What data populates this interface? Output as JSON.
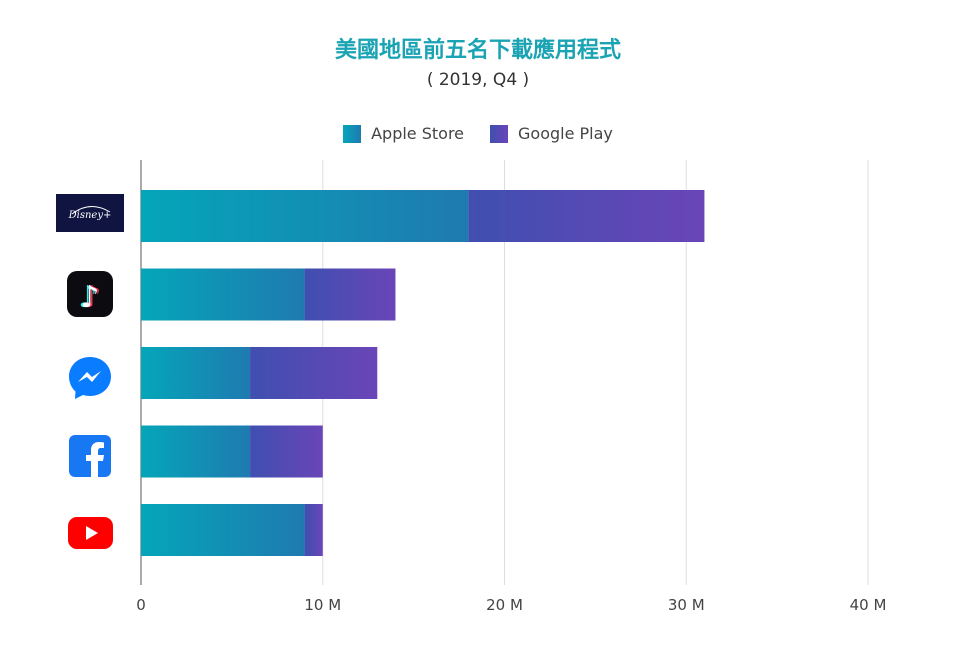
{
  "title": "美國地區前五名下載應用程式",
  "subtitle": "( 2019, Q4 )",
  "colors": {
    "apple_store_start": "#04a6b9",
    "apple_store_end": "#1f7ab0",
    "google_play_start": "#3f4fb0",
    "google_play_end": "#6a45b8",
    "grid": "#dddddd",
    "title": "#1aa3b3"
  },
  "chart_data": {
    "type": "bar",
    "orientation": "horizontal",
    "stacked": true,
    "categories": [
      "Disney+",
      "TikTok",
      "Messenger",
      "Facebook",
      "YouTube"
    ],
    "category_icons": [
      "disney-plus-icon",
      "tiktok-icon",
      "messenger-icon",
      "facebook-icon",
      "youtube-icon"
    ],
    "series": [
      {
        "name": "Apple Store",
        "values": [
          18,
          9,
          6,
          6,
          9
        ]
      },
      {
        "name": "Google Play",
        "values": [
          13,
          5,
          7,
          4,
          1
        ]
      }
    ],
    "xlim": [
      0,
      40
    ],
    "xticks": [
      0,
      10,
      20,
      30,
      40
    ],
    "xtick_labels": [
      "0",
      "10 M",
      "20 M",
      "30 M",
      "40 M"
    ],
    "grid": true,
    "legend": "top"
  }
}
